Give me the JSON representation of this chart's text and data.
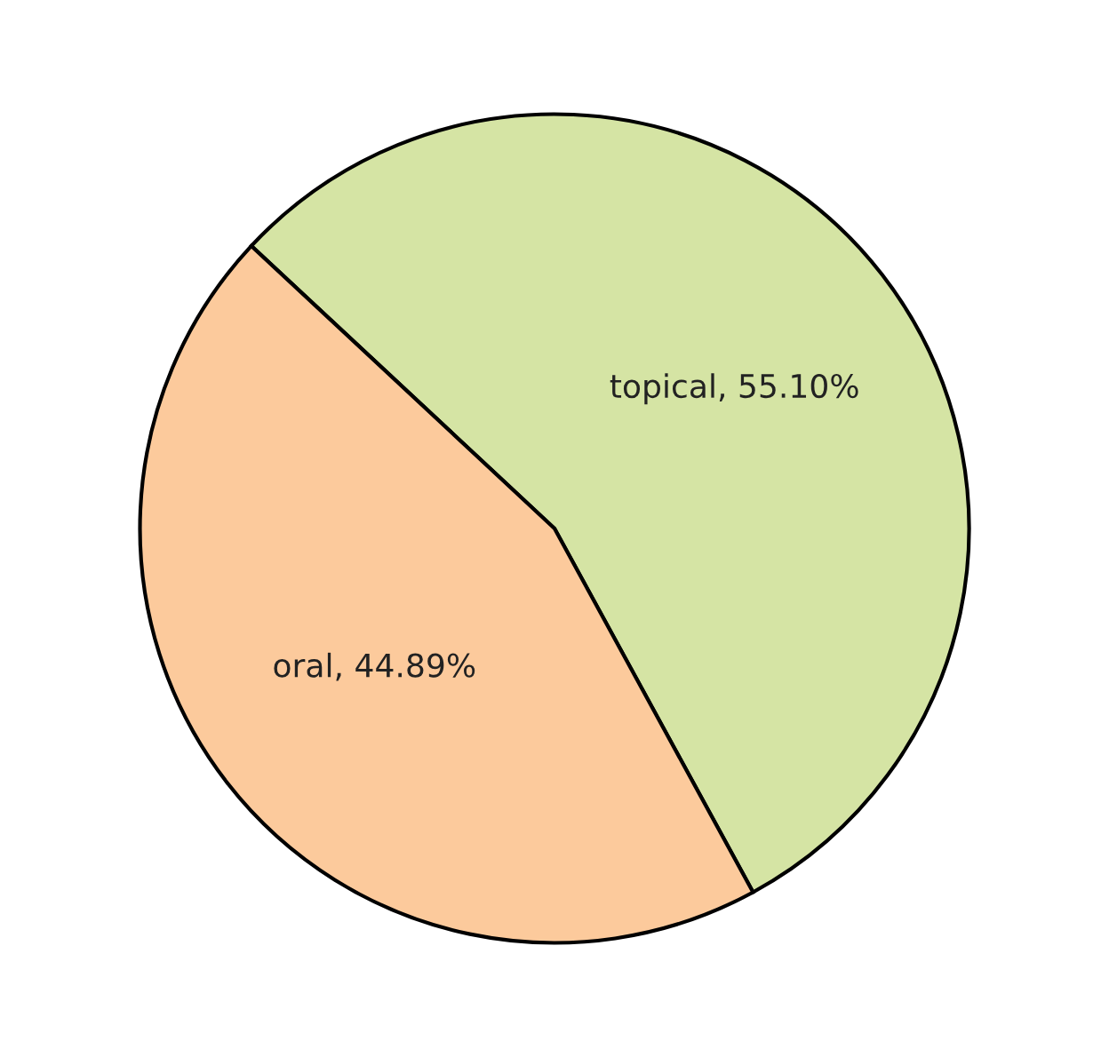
{
  "chart_data": {
    "type": "pie",
    "categories": [
      "topical",
      "oral"
    ],
    "values": [
      55.1,
      44.89
    ],
    "value_labels": [
      "55.10%",
      "44.89%"
    ],
    "colors": [
      "#d5e4a4",
      "#fcca9c"
    ]
  }
}
